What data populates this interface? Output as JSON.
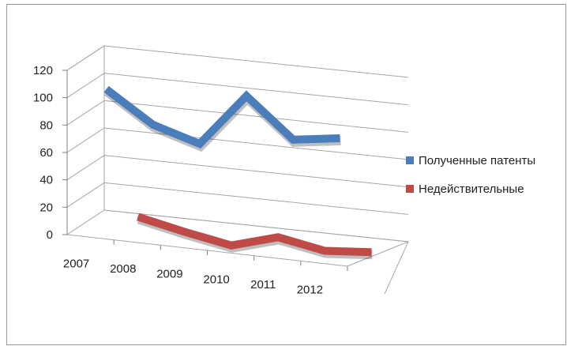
{
  "chart_data": {
    "type": "line",
    "style": "3d",
    "categories": [
      "2007",
      "2008",
      "2009",
      "2010",
      "2011",
      "2012"
    ],
    "series": [
      {
        "name": "Полученные патенты",
        "values": [
          107,
          82,
          69,
          105,
          74,
          76
        ],
        "color": "#4a7ebb"
      },
      {
        "name": "Недействительные",
        "values": [
          26,
          16,
          7,
          14,
          5,
          5
        ],
        "color": "#be4b48"
      }
    ],
    "yticks": [
      "0",
      "20",
      "40",
      "60",
      "80",
      "100",
      "120"
    ],
    "ylim": [
      0,
      120
    ],
    "grid": true,
    "legend": "right"
  }
}
